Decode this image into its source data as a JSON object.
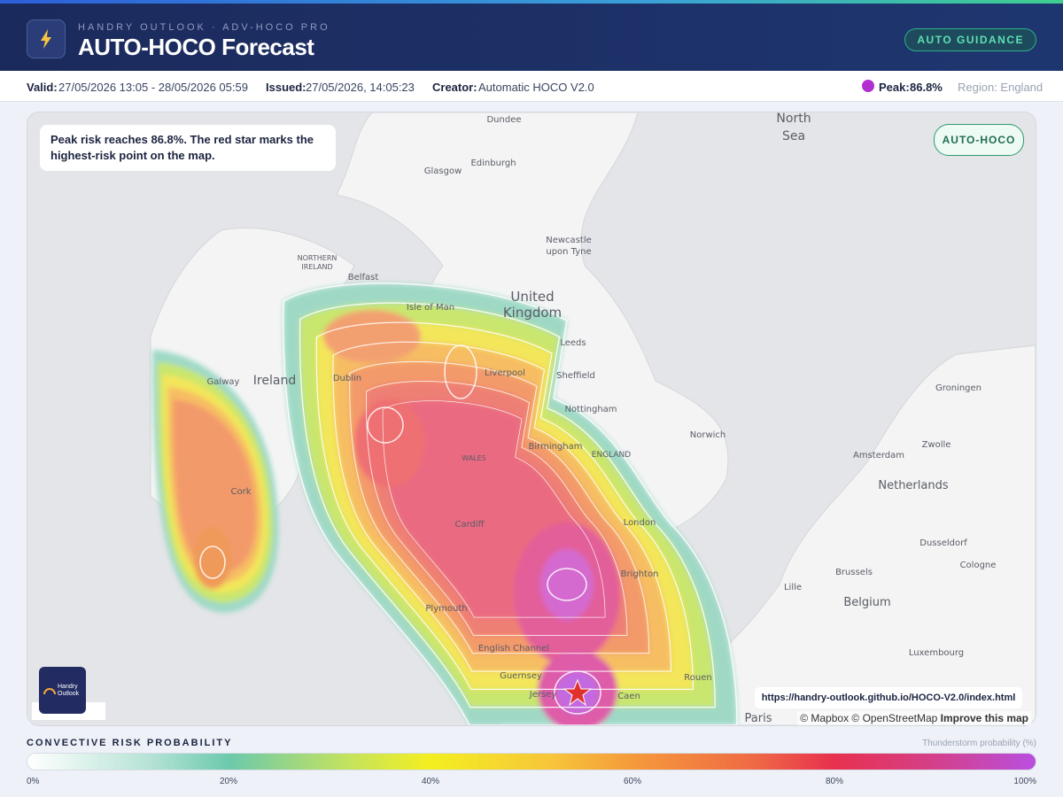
{
  "header": {
    "subtitle": "HANDRY OUTLOOK · ADV-HOCO PRO",
    "title": "AUTO-HOCO Forecast",
    "badge": "AUTO GUIDANCE"
  },
  "info": {
    "valid_label": "Valid:",
    "valid": "27/05/2026 13:05 - 28/05/2026 05:59",
    "issued_label": "Issued:",
    "issued": "27/05/2026, 14:05:23",
    "creator_label": "Creator:",
    "creator": "Automatic HOCO V2.0",
    "peak_label": "Peak:",
    "peak": "86.8%",
    "region": "Region: England"
  },
  "map": {
    "note": "Peak risk reaches 86.8%. The red star marks the highest-risk point on the map.",
    "badge": "AUTO-HOCO",
    "logo": [
      "Handry",
      "Outlook"
    ],
    "url": "https://handry-outlook.github.io/HOCO-V2.0/index.html",
    "attribution": "© Mapbox © OpenStreetMap",
    "improve": "Improve this map",
    "labels": [
      "North",
      "Sea",
      "Dundee",
      "Edinburgh",
      "Glasgow",
      "Newcastle",
      "upon Tyne",
      "NORTHERN",
      "IRELAND",
      "Belfast",
      "Isle of Man",
      "United",
      "Kingdom",
      "Leeds",
      "Ireland",
      "Dublin",
      "Liverpool",
      "Sheffield",
      "Galway",
      "Nottingham",
      "Norwich",
      "Birmingham",
      "WALES",
      "ENGLAND",
      "Cork",
      "Cardiff",
      "London",
      "Brighton",
      "Plymouth",
      "English Channel",
      "Guernsey",
      "Jersey",
      "Caen",
      "Rouen",
      "Paris",
      "Groningen",
      "Zwolle",
      "Amsterdam",
      "Netherlands",
      "Dusseldorf",
      "Cologne",
      "Brussels",
      "Lille",
      "Belgium",
      "Luxembourg"
    ]
  },
  "legend": {
    "title": "CONVECTIVE RISK PROBABILITY",
    "unit": "Thunderstorm probability (%)",
    "ticks": [
      "0%",
      "20%",
      "40%",
      "60%",
      "80%",
      "100%"
    ]
  }
}
